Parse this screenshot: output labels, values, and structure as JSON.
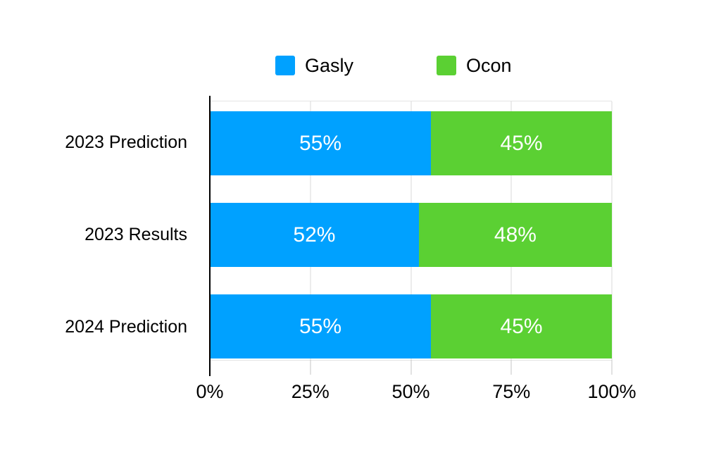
{
  "page": {
    "background_color": "#ffffff"
  },
  "chart_data": {
    "type": "bar",
    "orientation": "horizontal",
    "stacked": true,
    "title": "",
    "categories": [
      "2023 Prediction",
      "2023 Results",
      "2024 Prediction"
    ],
    "series": [
      {
        "name": "Gasly",
        "color": "#00A1FF",
        "values": [
          55,
          52,
          55
        ],
        "labels": [
          "55%",
          "52%",
          "55%"
        ]
      },
      {
        "name": "Ocon",
        "color": "#5BD033",
        "values": [
          45,
          48,
          45
        ],
        "labels": [
          "45%",
          "48%",
          "45%"
        ]
      }
    ],
    "xlim": [
      0,
      100
    ],
    "x_ticks": [
      {
        "label": "0%",
        "value": 0
      },
      {
        "label": "25%",
        "value": 25
      },
      {
        "label": "50%",
        "value": 50
      },
      {
        "label": "75%",
        "value": 75
      },
      {
        "label": "100%",
        "value": 100
      }
    ],
    "legend_position": "top",
    "grid": true,
    "gridline_color": "#d8d8d8",
    "axis_color": "#000000",
    "value_label_color": "#ffffff",
    "tick_label_color": "#000000"
  }
}
